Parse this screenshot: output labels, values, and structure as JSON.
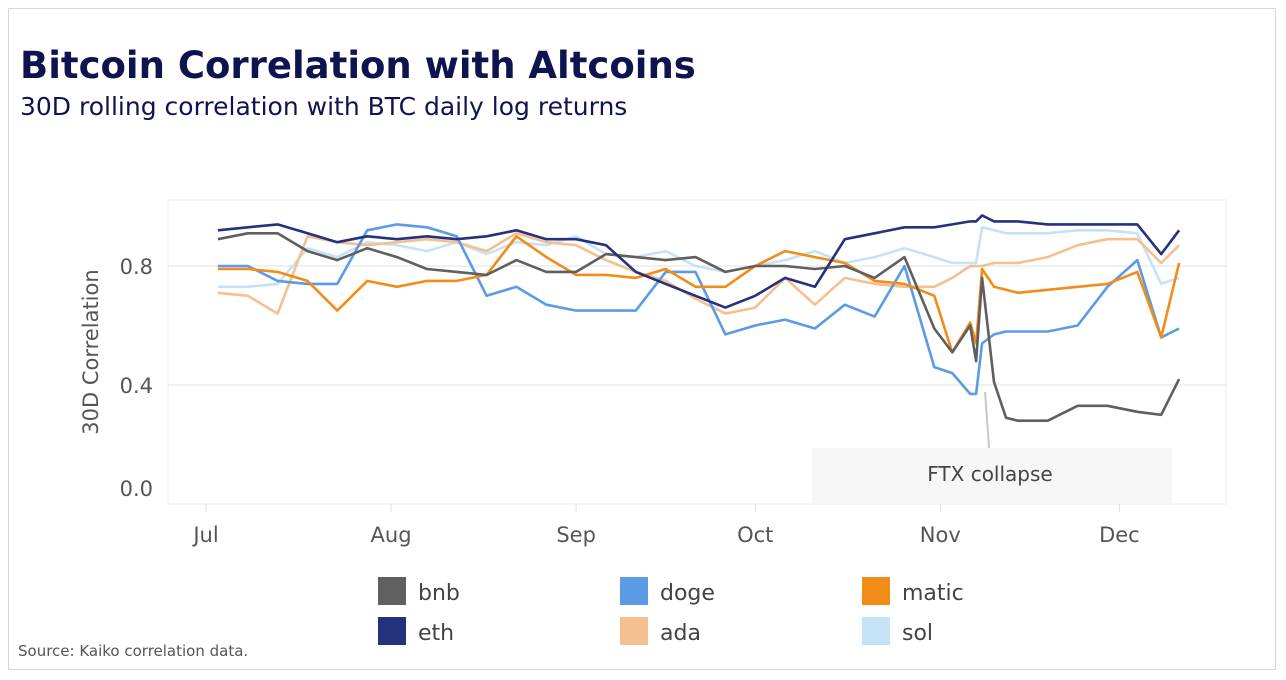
{
  "title": "Bitcoin Correlation with Altcoins",
  "subtitle": "30D rolling correlation with BTC daily log returns",
  "source": "Source: Kaiko correlation data.",
  "chart_data": {
    "type": "line",
    "title": "Bitcoin Correlation with Altcoins",
    "subtitle": "30D rolling correlation with BTC daily log returns",
    "xlabel": "",
    "ylabel": "30D Correlation",
    "ylim": [
      0,
      1.0
    ],
    "yticks": [
      "0.0",
      "0.4",
      "0.8"
    ],
    "ytick_values": [
      0,
      0.4,
      0.8
    ],
    "xticks": [
      "Jul",
      "Aug",
      "Sep",
      "Oct",
      "Nov",
      "Dec"
    ],
    "grid": true,
    "legend_position": "bottom",
    "annotation": {
      "text": "FTX collapse",
      "date": "Nov 9"
    },
    "x": [
      "Jul 3",
      "Jul 8",
      "Jul 13",
      "Jul 18",
      "Jul 23",
      "Jul 28",
      "Aug 2",
      "Aug 7",
      "Aug 12",
      "Aug 17",
      "Aug 22",
      "Aug 27",
      "Sep 1",
      "Sep 6",
      "Sep 11",
      "Sep 16",
      "Sep 21",
      "Sep 26",
      "Oct 1",
      "Oct 6",
      "Oct 11",
      "Oct 16",
      "Oct 21",
      "Oct 26",
      "Oct 31",
      "Nov 3",
      "Nov 6",
      "Nov 7",
      "Nov 8",
      "Nov 10",
      "Nov 12",
      "Nov 14",
      "Nov 19",
      "Nov 24",
      "Nov 29",
      "Dec 4",
      "Dec 8",
      "Dec 11"
    ],
    "series": [
      {
        "name": "bnb",
        "color": "#5f5f5f",
        "values": [
          0.89,
          0.91,
          0.91,
          0.85,
          0.82,
          0.86,
          0.83,
          0.79,
          0.78,
          0.77,
          0.82,
          0.78,
          0.78,
          0.84,
          0.83,
          0.82,
          0.83,
          0.78,
          0.8,
          0.8,
          0.79,
          0.8,
          0.76,
          0.83,
          0.59,
          0.51,
          0.6,
          0.48,
          0.76,
          0.41,
          0.29,
          0.28,
          0.28,
          0.33,
          0.33,
          0.31,
          0.3,
          0.42
        ]
      },
      {
        "name": "doge",
        "color": "#5b9be6",
        "values": [
          0.8,
          0.8,
          0.75,
          0.74,
          0.74,
          0.92,
          0.94,
          0.93,
          0.9,
          0.7,
          0.73,
          0.67,
          0.65,
          0.65,
          0.65,
          0.78,
          0.78,
          0.57,
          0.6,
          0.62,
          0.59,
          0.67,
          0.63,
          0.8,
          0.46,
          0.44,
          0.37,
          0.37,
          0.54,
          0.57,
          0.58,
          0.58,
          0.58,
          0.6,
          0.73,
          0.82,
          0.56,
          0.59
        ]
      },
      {
        "name": "matic",
        "color": "#f28c18",
        "values": [
          0.79,
          0.79,
          0.78,
          0.75,
          0.65,
          0.75,
          0.73,
          0.75,
          0.75,
          0.77,
          0.9,
          0.83,
          0.77,
          0.77,
          0.76,
          0.79,
          0.73,
          0.73,
          0.8,
          0.85,
          0.83,
          0.81,
          0.75,
          0.74,
          0.7,
          0.51,
          0.61,
          0.54,
          0.79,
          0.73,
          0.72,
          0.71,
          0.72,
          0.73,
          0.74,
          0.78,
          0.56,
          0.81
        ]
      },
      {
        "name": "eth",
        "color": "#24327d",
        "values": [
          0.92,
          0.93,
          0.94,
          0.91,
          0.88,
          0.9,
          0.89,
          0.9,
          0.89,
          0.9,
          0.92,
          0.89,
          0.89,
          0.87,
          0.78,
          0.74,
          0.7,
          0.66,
          0.7,
          0.76,
          0.73,
          0.89,
          0.91,
          0.93,
          0.93,
          0.94,
          0.95,
          0.95,
          0.97,
          0.95,
          0.95,
          0.95,
          0.94,
          0.94,
          0.94,
          0.94,
          0.84,
          0.92
        ]
      },
      {
        "name": "ada",
        "color": "#f5c08f",
        "values": [
          0.71,
          0.7,
          0.64,
          0.9,
          0.88,
          0.87,
          0.88,
          0.89,
          0.88,
          0.85,
          0.91,
          0.88,
          0.87,
          0.82,
          0.78,
          0.75,
          0.69,
          0.64,
          0.66,
          0.76,
          0.67,
          0.76,
          0.74,
          0.73,
          0.73,
          0.76,
          0.8,
          0.8,
          0.8,
          0.81,
          0.81,
          0.81,
          0.83,
          0.87,
          0.89,
          0.89,
          0.81,
          0.87
        ]
      },
      {
        "name": "sol",
        "color": "#c5e2f7",
        "values": [
          0.73,
          0.73,
          0.74,
          0.86,
          0.83,
          0.88,
          0.87,
          0.85,
          0.88,
          0.84,
          0.88,
          0.87,
          0.9,
          0.84,
          0.83,
          0.85,
          0.8,
          0.78,
          0.8,
          0.82,
          0.85,
          0.81,
          0.83,
          0.86,
          0.83,
          0.81,
          0.81,
          0.81,
          0.93,
          0.92,
          0.91,
          0.91,
          0.91,
          0.92,
          0.92,
          0.91,
          0.74,
          0.76
        ]
      }
    ]
  }
}
